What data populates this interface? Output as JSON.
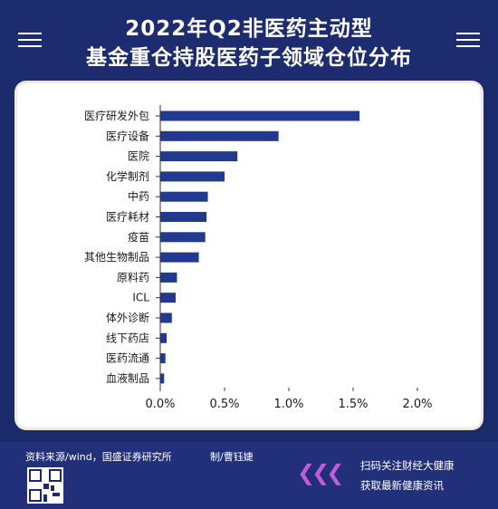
{
  "header": {
    "title_line1": "2022年Q2非医药主动型",
    "title_line2": "基金重仓持股医药子领域仓位分布"
  },
  "chart_data": {
    "type": "bar",
    "orientation": "horizontal",
    "categories": [
      "医疗研发外包",
      "医疗设备",
      "医院",
      "化学制剂",
      "中药",
      "医疗耗材",
      "疫苗",
      "其他生物制品",
      "原料药",
      "ICL",
      "体外诊断",
      "线下药店",
      "医药流通",
      "血液制品"
    ],
    "values": [
      1.55,
      0.92,
      0.6,
      0.5,
      0.37,
      0.36,
      0.35,
      0.3,
      0.13,
      0.12,
      0.09,
      0.05,
      0.04,
      0.03
    ],
    "x_ticks": [
      "0.0%",
      "0.5%",
      "1.0%",
      "1.5%",
      "2.0%"
    ],
    "xlim": [
      0,
      2.0
    ],
    "bar_color": "#213a8f",
    "grid": false
  },
  "footer": {
    "source": "资料来源/wind，国盛证券研究所",
    "credit": "制/曹钰婕",
    "cta_line1": "扫码关注财经大健康",
    "cta_line2": "获取最新健康资讯",
    "arrows": "❮❮❮"
  },
  "colors": {
    "background": "#1b2a6b",
    "arrow_accent": "#c05cd8"
  }
}
